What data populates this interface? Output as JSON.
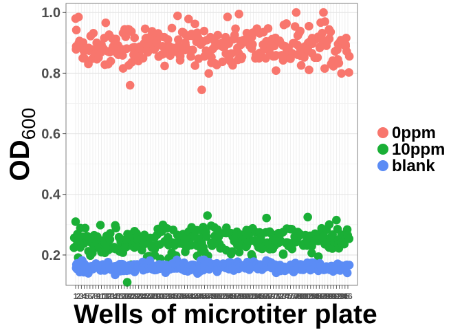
{
  "chart_data": {
    "type": "scatter",
    "xlabel": "Wells of microtiter plate",
    "ylabel_main": "OD",
    "ylabel_sub": "600",
    "ylim": [
      0.1,
      1.03
    ],
    "yticks": [
      0.2,
      0.4,
      0.6,
      0.8,
      1.0
    ],
    "ytick_labels": [
      "0.2",
      "0.4",
      "0.6",
      "0.8",
      "1.0"
    ],
    "x_count": 96,
    "grid": true,
    "legend_position": "right",
    "series": [
      {
        "name": "0ppm",
        "color": "#F8766D",
        "points_per_well": 3,
        "center": 0.89,
        "spread": 0.05,
        "outliers": [
          [
            20,
            0.76
          ],
          [
            45,
            0.745
          ],
          [
            58,
            0.995
          ],
          [
            2,
            0.985
          ],
          [
            88,
            0.97
          ],
          [
            1,
            0.98
          ]
        ]
      },
      {
        "name": "10ppm",
        "color": "#1AAF36",
        "points_per_well": 3,
        "center": 0.245,
        "spread": 0.035,
        "outliers": [
          [
            19,
            0.11
          ],
          [
            47,
            0.33
          ],
          [
            1,
            0.31
          ],
          [
            92,
            0.315
          ],
          [
            82,
            0.325
          ]
        ]
      },
      {
        "name": "blank",
        "color": "#5B8CF5",
        "points_per_well": 3,
        "center": 0.16,
        "spread": 0.012,
        "outliers": []
      }
    ]
  }
}
